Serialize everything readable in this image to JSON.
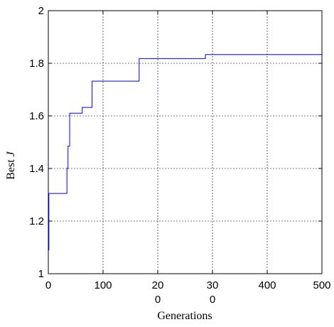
{
  "chart_data": {
    "type": "line",
    "xlabel": "Generations",
    "ylabel": "Best",
    "ylabel_italic": "J",
    "xlim": [
      0,
      500
    ],
    "ylim": [
      1,
      2
    ],
    "grid": true,
    "line_color": "#0000ff",
    "x_ticks": [
      {
        "value": 0,
        "lines": [
          "0"
        ]
      },
      {
        "value": 100,
        "lines": [
          "100"
        ]
      },
      {
        "value": 200,
        "lines": [
          "20",
          "0"
        ]
      },
      {
        "value": 300,
        "lines": [
          "30",
          "0"
        ]
      },
      {
        "value": 400,
        "lines": [
          "400"
        ]
      },
      {
        "value": 500,
        "lines": [
          "500"
        ]
      }
    ],
    "y_ticks": [
      {
        "value": 1,
        "label": "1"
      },
      {
        "value": 1.2,
        "label": "1.2"
      },
      {
        "value": 1.4,
        "label": "1.4"
      },
      {
        "value": 1.6,
        "label": "1.6"
      },
      {
        "value": 1.8,
        "label": "1.8"
      },
      {
        "value": 2,
        "label": "2"
      }
    ],
    "series": [
      {
        "x": [
          0,
          1,
          1,
          34,
          34,
          36,
          36,
          39,
          39,
          52,
          52,
          62,
          62,
          70,
          70,
          80,
          80,
          166,
          166,
          287,
          287,
          300,
          500
        ],
        "y": [
          1.09,
          1.09,
          1.305,
          1.305,
          1.4,
          1.4,
          1.485,
          1.485,
          1.61,
          1.61,
          1.61,
          1.61,
          1.632,
          1.632,
          1.632,
          1.632,
          1.732,
          1.732,
          1.818,
          1.818,
          1.833,
          1.833,
          1.833
        ]
      }
    ]
  }
}
